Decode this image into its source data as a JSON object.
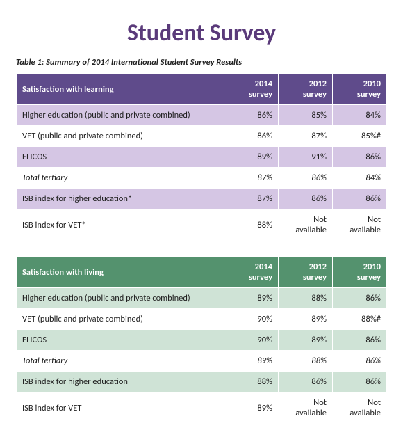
{
  "title": "Student Survey",
  "caption": "Table 1: Summary of 2014 International Student Survey Results",
  "columns": {
    "survey2014": "2014 survey",
    "survey2012": "2012 survey",
    "survey2010": "2010 survey"
  },
  "table1": {
    "header_bg": "#5f4b8b",
    "band_bg": "#d5c6e4",
    "header_label": "Satisfaction with learning",
    "rows": [
      {
        "label": "Higher education (public and private combined)",
        "v2014": "86%",
        "v2012": "85%",
        "v2010": "84%",
        "band": true,
        "italic": false
      },
      {
        "label": "VET (public and private combined)",
        "v2014": "86%",
        "v2012": "87%",
        "v2010": "85%#",
        "band": false,
        "italic": false
      },
      {
        "label": "ELICOS",
        "v2014": "89%",
        "v2012": "91%",
        "v2010": "86%",
        "band": true,
        "italic": false
      },
      {
        "label": "Total tertiary",
        "v2014": "87%",
        "v2012": "86%",
        "v2010": "84%",
        "band": false,
        "italic": true
      },
      {
        "label": "ISB index for higher education*",
        "v2014": "87%",
        "v2012": "86%",
        "v2010": "86%",
        "band": true,
        "italic": false
      },
      {
        "label": "ISB index for VET*",
        "v2014": "88%",
        "v2012": "Not available",
        "v2010": "Not available",
        "band": false,
        "italic": false
      }
    ]
  },
  "table2": {
    "header_bg": "#54926e",
    "band_bg": "#cfe3d6",
    "header_label": "Satisfaction with living",
    "rows": [
      {
        "label": "Higher education (public and private combined)",
        "v2014": "89%",
        "v2012": "88%",
        "v2010": "86%",
        "band": true,
        "italic": false
      },
      {
        "label": "VET (public and private combined)",
        "v2014": "90%",
        "v2012": "89%",
        "v2010": "88%#",
        "band": false,
        "italic": false
      },
      {
        "label": "ELICOS",
        "v2014": "90%",
        "v2012": "89%",
        "v2010": "86%",
        "band": true,
        "italic": false
      },
      {
        "label": "Total tertiary",
        "v2014": "89%",
        "v2012": "88%",
        "v2010": "86%",
        "band": false,
        "italic": true
      },
      {
        "label": "ISB index for higher education",
        "v2014": "88%",
        "v2012": "86%",
        "v2010": "86%",
        "band": true,
        "italic": false
      },
      {
        "label": "ISB index for VET",
        "v2014": "89%",
        "v2012": "Not available",
        "v2010": "Not available",
        "band": false,
        "italic": false
      }
    ]
  }
}
